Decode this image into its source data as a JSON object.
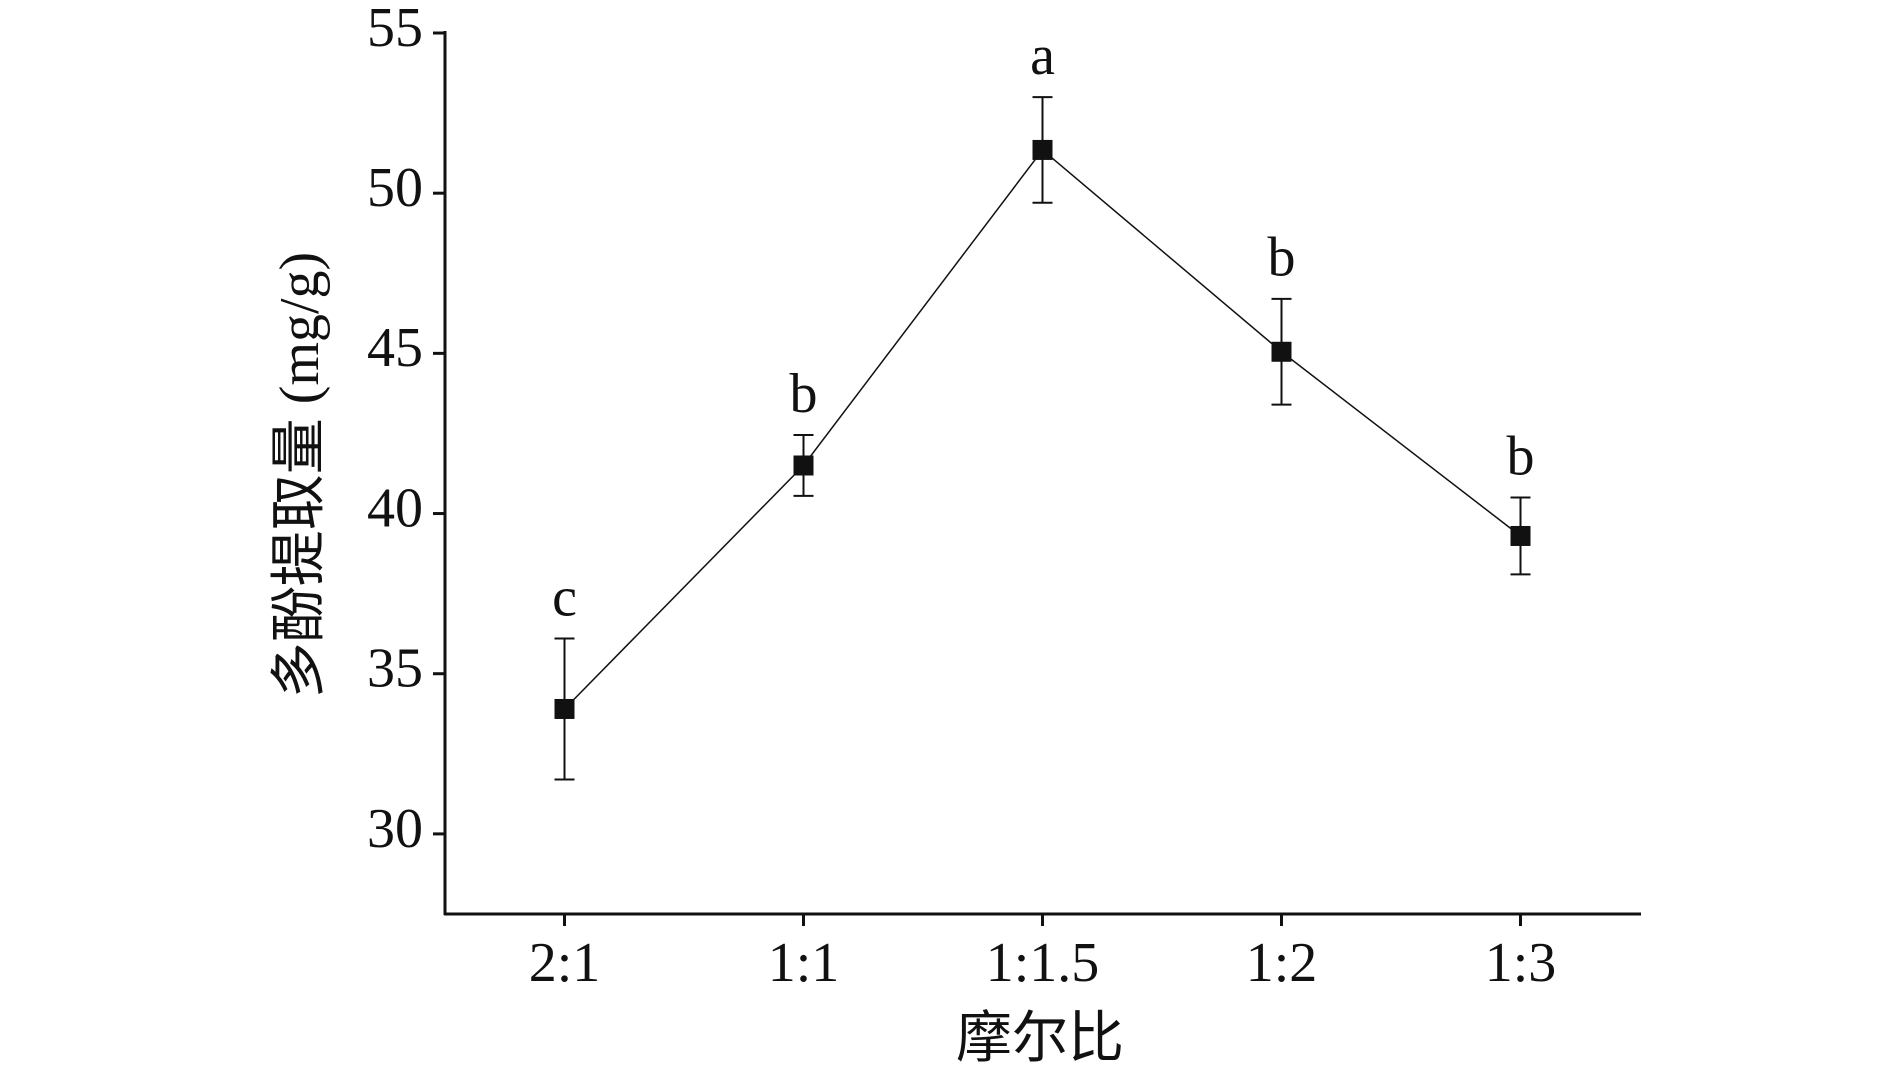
{
  "chart_data": {
    "type": "line",
    "x_label": "摩尔比",
    "y_label": "多酚提取量 (mg/g)",
    "categories": [
      "2:1",
      "1:1",
      "1:1.5",
      "1:2",
      "1:3"
    ],
    "series": [
      {
        "values": [
          33.9,
          41.5,
          51.35,
          45.05,
          39.3
        ],
        "errors": [
          2.2,
          0.95,
          1.65,
          1.65,
          1.2
        ],
        "color": "#111111",
        "annotations": [
          "c",
          "b",
          "a",
          "b",
          "b"
        ]
      }
    ],
    "ylim": [
      27.5,
      55
    ],
    "yticks": [
      30,
      35,
      40,
      45,
      50,
      55
    ],
    "grid": false
  }
}
